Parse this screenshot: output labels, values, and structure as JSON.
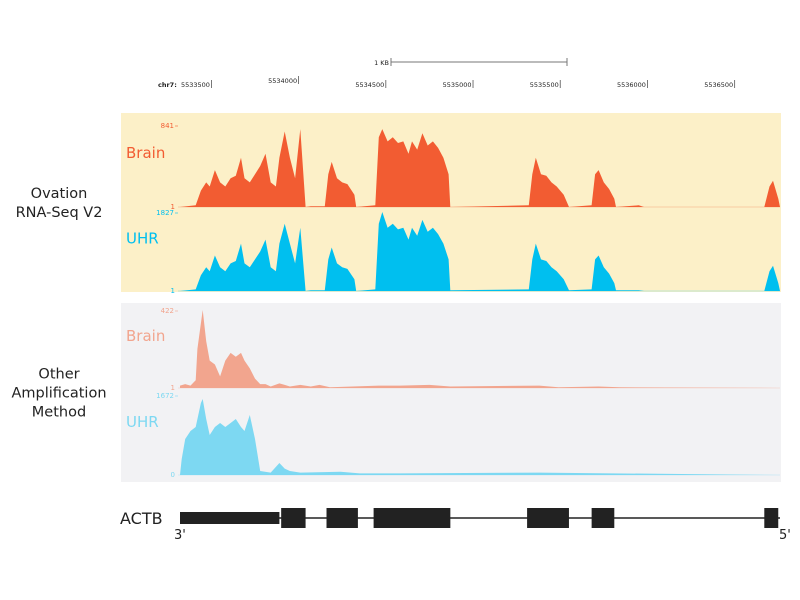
{
  "scale_bar": {
    "label": "1 KB"
  },
  "ruler": {
    "chrom_label": "chr7:",
    "ticks": [
      5533500,
      5534000,
      5534500,
      5535000,
      5535500,
      5536000,
      5536500
    ],
    "tick_labels": [
      "5533500",
      "5534000",
      "5534500",
      "5535000",
      "5535500",
      "5536000",
      "5536500"
    ]
  },
  "groups": [
    {
      "label_line1": "Ovation",
      "label_line2": "RNA-Seq V2",
      "label_line3": "",
      "background": "#fcf0c8"
    },
    {
      "label_line1": "Other",
      "label_line2": "Amplification",
      "label_line3": "Method",
      "background": "#f2f2f4"
    }
  ],
  "chart_data": {
    "type": "area",
    "xlim": [
      5533320,
      5536760
    ],
    "tracks": [
      {
        "name": "Brain",
        "group": 0,
        "color": "#f25c32",
        "ymax_label": "841",
        "ymin_label": "1",
        "ylim": [
          0,
          841
        ],
        "points": [
          [
            5533320,
            0
          ],
          [
            5533410,
            17
          ],
          [
            5533440,
            168
          ],
          [
            5533470,
            252
          ],
          [
            5533490,
            210
          ],
          [
            5533520,
            378
          ],
          [
            5533550,
            252
          ],
          [
            5533580,
            210
          ],
          [
            5533610,
            294
          ],
          [
            5533640,
            320
          ],
          [
            5533670,
            505
          ],
          [
            5533690,
            294
          ],
          [
            5533720,
            252
          ],
          [
            5533750,
            336
          ],
          [
            5533780,
            420
          ],
          [
            5533810,
            547
          ],
          [
            5533840,
            252
          ],
          [
            5533870,
            210
          ],
          [
            5533890,
            505
          ],
          [
            5533920,
            774
          ],
          [
            5533950,
            505
          ],
          [
            5533980,
            294
          ],
          [
            5534010,
            799
          ],
          [
            5534040,
            0
          ],
          [
            5534070,
            8
          ],
          [
            5534150,
            8
          ],
          [
            5534170,
            336
          ],
          [
            5534190,
            463
          ],
          [
            5534220,
            294
          ],
          [
            5534250,
            252
          ],
          [
            5534280,
            235
          ],
          [
            5534320,
            126
          ],
          [
            5534330,
            0
          ],
          [
            5534440,
            17
          ],
          [
            5534460,
            715
          ],
          [
            5534480,
            799
          ],
          [
            5534510,
            673
          ],
          [
            5534540,
            715
          ],
          [
            5534570,
            656
          ],
          [
            5534600,
            673
          ],
          [
            5534630,
            547
          ],
          [
            5534650,
            673
          ],
          [
            5534680,
            589
          ],
          [
            5534710,
            757
          ],
          [
            5534740,
            631
          ],
          [
            5534770,
            673
          ],
          [
            5534800,
            606
          ],
          [
            5534830,
            505
          ],
          [
            5534860,
            336
          ],
          [
            5534870,
            0
          ],
          [
            5535320,
            17
          ],
          [
            5535340,
            336
          ],
          [
            5535360,
            505
          ],
          [
            5535390,
            336
          ],
          [
            5535420,
            320
          ],
          [
            5535450,
            252
          ],
          [
            5535480,
            210
          ],
          [
            5535520,
            126
          ],
          [
            5535550,
            0
          ],
          [
            5535680,
            17
          ],
          [
            5535700,
            336
          ],
          [
            5535720,
            378
          ],
          [
            5535750,
            252
          ],
          [
            5535780,
            185
          ],
          [
            5535810,
            84
          ],
          [
            5535820,
            0
          ],
          [
            5535950,
            17
          ],
          [
            5535980,
            0
          ],
          [
            5536670,
            0
          ],
          [
            5536700,
            210
          ],
          [
            5536720,
            269
          ],
          [
            5536750,
            84
          ],
          [
            5536760,
            0
          ]
        ]
      },
      {
        "name": "UHR",
        "group": 0,
        "color": "#00bfef",
        "ymax_label": "1827",
        "ymin_label": "1",
        "ylim": [
          0,
          1827
        ],
        "points": [
          [
            5533320,
            0
          ],
          [
            5533410,
            37
          ],
          [
            5533440,
            365
          ],
          [
            5533470,
            548
          ],
          [
            5533490,
            457
          ],
          [
            5533520,
            822
          ],
          [
            5533550,
            548
          ],
          [
            5533580,
            457
          ],
          [
            5533610,
            639
          ],
          [
            5533640,
            694
          ],
          [
            5533670,
            1096
          ],
          [
            5533690,
            639
          ],
          [
            5533720,
            548
          ],
          [
            5533750,
            731
          ],
          [
            5533780,
            914
          ],
          [
            5533810,
            1188
          ],
          [
            5533840,
            548
          ],
          [
            5533870,
            457
          ],
          [
            5533890,
            1096
          ],
          [
            5533920,
            1553
          ],
          [
            5533950,
            1096
          ],
          [
            5533980,
            639
          ],
          [
            5534010,
            1462
          ],
          [
            5534040,
            0
          ],
          [
            5534070,
            18
          ],
          [
            5534150,
            18
          ],
          [
            5534170,
            731
          ],
          [
            5534190,
            1005
          ],
          [
            5534220,
            639
          ],
          [
            5534250,
            548
          ],
          [
            5534280,
            512
          ],
          [
            5534320,
            274
          ],
          [
            5534330,
            0
          ],
          [
            5534440,
            37
          ],
          [
            5534460,
            1553
          ],
          [
            5534480,
            1827
          ],
          [
            5534510,
            1462
          ],
          [
            5534540,
            1553
          ],
          [
            5534570,
            1425
          ],
          [
            5534600,
            1462
          ],
          [
            5534630,
            1188
          ],
          [
            5534650,
            1462
          ],
          [
            5534680,
            1279
          ],
          [
            5534710,
            1644
          ],
          [
            5534740,
            1370
          ],
          [
            5534770,
            1462
          ],
          [
            5534800,
            1315
          ],
          [
            5534830,
            1096
          ],
          [
            5534860,
            731
          ],
          [
            5534870,
            18
          ],
          [
            5535320,
            37
          ],
          [
            5535340,
            731
          ],
          [
            5535360,
            1096
          ],
          [
            5535390,
            731
          ],
          [
            5535420,
            694
          ],
          [
            5535450,
            548
          ],
          [
            5535480,
            457
          ],
          [
            5535520,
            274
          ],
          [
            5535550,
            18
          ],
          [
            5535680,
            37
          ],
          [
            5535700,
            731
          ],
          [
            5535720,
            822
          ],
          [
            5535750,
            548
          ],
          [
            5535780,
            402
          ],
          [
            5535810,
            183
          ],
          [
            5535820,
            18
          ],
          [
            5535950,
            18
          ],
          [
            5535980,
            0
          ],
          [
            5536670,
            0
          ],
          [
            5536700,
            457
          ],
          [
            5536720,
            585
          ],
          [
            5536750,
            183
          ],
          [
            5536760,
            0
          ]
        ]
      },
      {
        "name": "Brain",
        "group": 1,
        "color": "#f2a58e",
        "ymax_label": "422",
        "ymin_label": "1",
        "ylim": [
          0,
          422
        ],
        "points": [
          [
            5533320,
            13
          ],
          [
            5533350,
            21
          ],
          [
            5533380,
            13
          ],
          [
            5533410,
            42
          ],
          [
            5533420,
            211
          ],
          [
            5533450,
            422
          ],
          [
            5533470,
            253
          ],
          [
            5533490,
            148
          ],
          [
            5533520,
            127
          ],
          [
            5533550,
            63
          ],
          [
            5533580,
            148
          ],
          [
            5533610,
            190
          ],
          [
            5533640,
            169
          ],
          [
            5533670,
            190
          ],
          [
            5533690,
            148
          ],
          [
            5533720,
            106
          ],
          [
            5533750,
            51
          ],
          [
            5533780,
            21
          ],
          [
            5533810,
            21
          ],
          [
            5533840,
            8
          ],
          [
            5533890,
            25
          ],
          [
            5533920,
            17
          ],
          [
            5533950,
            8
          ],
          [
            5534010,
            17
          ],
          [
            5534070,
            8
          ],
          [
            5534120,
            17
          ],
          [
            5534180,
            4
          ],
          [
            5534460,
            13
          ],
          [
            5534580,
            13
          ],
          [
            5534750,
            17
          ],
          [
            5534870,
            8
          ],
          [
            5535380,
            13
          ],
          [
            5535490,
            4
          ],
          [
            5535720,
            8
          ],
          [
            5535840,
            4
          ],
          [
            5536750,
            0
          ]
        ]
      },
      {
        "name": "UHR",
        "group": 1,
        "color": "#7dd8f2",
        "ymax_label": "1672",
        "ymin_label": "0",
        "ylim": [
          0,
          1672
        ],
        "points": [
          [
            5533320,
            0
          ],
          [
            5533330,
            334
          ],
          [
            5533350,
            752
          ],
          [
            5533380,
            920
          ],
          [
            5533410,
            1003
          ],
          [
            5533440,
            1505
          ],
          [
            5533450,
            1588
          ],
          [
            5533470,
            1170
          ],
          [
            5533490,
            836
          ],
          [
            5533520,
            1003
          ],
          [
            5533550,
            1087
          ],
          [
            5533580,
            1003
          ],
          [
            5533610,
            1087
          ],
          [
            5533640,
            1170
          ],
          [
            5533670,
            1003
          ],
          [
            5533690,
            920
          ],
          [
            5533720,
            1254
          ],
          [
            5533750,
            752
          ],
          [
            5533780,
            84
          ],
          [
            5533840,
            50
          ],
          [
            5533890,
            251
          ],
          [
            5533920,
            134
          ],
          [
            5533950,
            84
          ],
          [
            5534010,
            50
          ],
          [
            5534240,
            67
          ],
          [
            5534350,
            33
          ],
          [
            5534580,
            33
          ],
          [
            5535380,
            50
          ],
          [
            5536750,
            0
          ]
        ]
      }
    ]
  },
  "gene": {
    "name": "ACTB",
    "left_end_label": "3'",
    "right_end_label": "5'",
    "utr": [
      [
        5533320,
        5533890
      ]
    ],
    "exons": [
      [
        5533900,
        5534040
      ],
      [
        5534160,
        5534340
      ],
      [
        5534430,
        5534870
      ],
      [
        5535310,
        5535550
      ],
      [
        5535680,
        5535810
      ],
      [
        5536670,
        5536750
      ]
    ]
  }
}
